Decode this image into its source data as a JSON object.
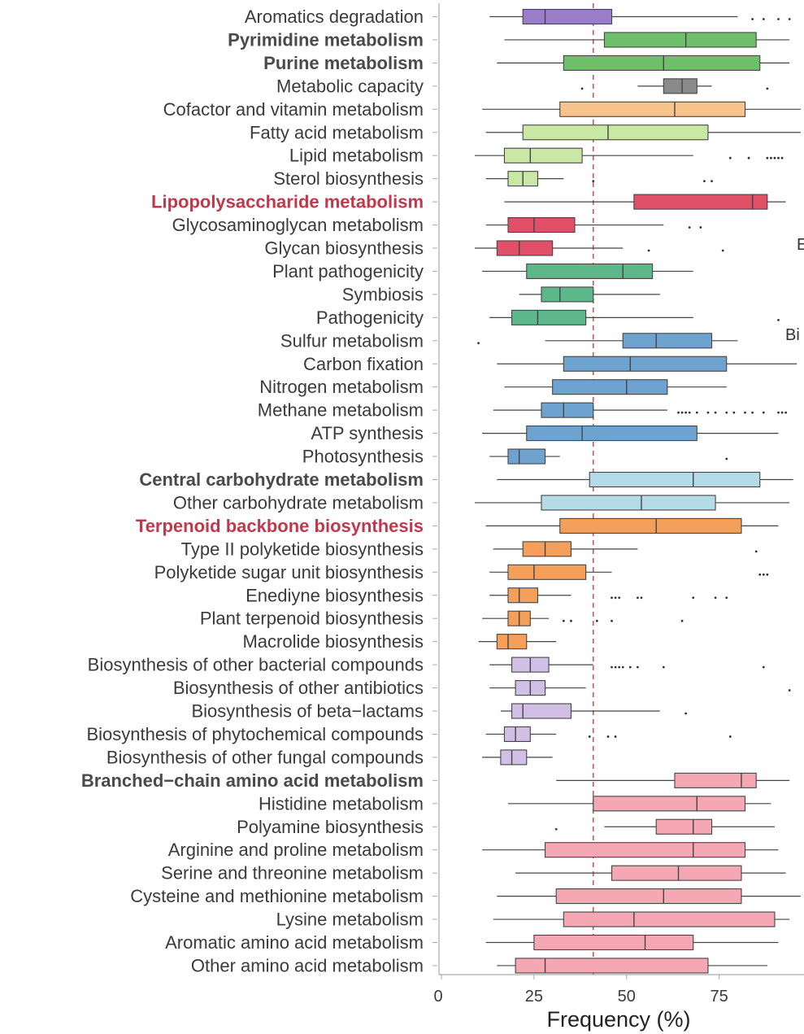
{
  "chart_data": {
    "type": "boxplot",
    "xlabel": "Frequency (%)",
    "xlim": [
      0,
      97
    ],
    "x_ticks": [
      0,
      25,
      50,
      75
    ],
    "reference_line": {
      "x": 41,
      "style": "dashed",
      "color": "#d05555"
    },
    "side_labels": [
      "E",
      "Bi"
    ],
    "categories": [
      {
        "label": "Aromatics degradation",
        "style": "normal",
        "color": "#9b7ec8",
        "whisker_low": 13,
        "q1": 22,
        "median": 28,
        "q3": 46,
        "whisker_high": 80,
        "outliers": [
          84,
          87,
          91,
          94
        ]
      },
      {
        "label": "Pyrimidine metabolism",
        "style": "bold",
        "color": "#6dbf6a",
        "whisker_low": 17,
        "q1": 44,
        "median": 66,
        "q3": 85,
        "whisker_high": 94,
        "outliers": []
      },
      {
        "label": "Purine metabolism",
        "style": "bold",
        "color": "#6dbf6a",
        "whisker_low": 15,
        "q1": 33,
        "median": 60,
        "q3": 86,
        "whisker_high": 94,
        "outliers": []
      },
      {
        "label": "Metabolic capacity",
        "style": "normal",
        "color": "#8a8a8a",
        "whisker_low": 53,
        "q1": 60,
        "median": 65,
        "q3": 69,
        "whisker_high": 73,
        "outliers": [
          38,
          88
        ]
      },
      {
        "label": "Cofactor and vitamin metabolism",
        "style": "normal",
        "color": "#f7c48d",
        "whisker_low": 11,
        "q1": 32,
        "median": 63,
        "q3": 82,
        "whisker_high": 97,
        "outliers": []
      },
      {
        "label": "Fatty acid metabolism",
        "style": "normal",
        "color": "#c9e8a6",
        "whisker_low": 12,
        "q1": 22,
        "median": 45,
        "q3": 72,
        "whisker_high": 97,
        "outliers": []
      },
      {
        "label": "Lipid metabolism",
        "style": "normal",
        "color": "#c9e8a6",
        "whisker_low": 9,
        "q1": 17,
        "median": 24,
        "q3": 38,
        "whisker_high": 68,
        "outliers": [
          78,
          83,
          88,
          89,
          90,
          91,
          92
        ]
      },
      {
        "label": "Sterol biosynthesis",
        "style": "normal",
        "color": "#c9e8a6",
        "whisker_low": 12,
        "q1": 18,
        "median": 22,
        "q3": 26,
        "whisker_high": 33,
        "outliers": [
          41,
          71,
          73
        ]
      },
      {
        "label": "Lipopolysaccharide metabolism",
        "style": "highlight",
        "color": "#e05068",
        "whisker_low": 17,
        "q1": 52,
        "median": 84,
        "q3": 88,
        "whisker_high": 93,
        "outliers": []
      },
      {
        "label": "Glycosaminoglycan metabolism",
        "style": "normal",
        "color": "#e05068",
        "whisker_low": 12,
        "q1": 18,
        "median": 25,
        "q3": 36,
        "whisker_high": 60,
        "outliers": [
          67,
          70
        ]
      },
      {
        "label": "Glycan biosynthesis",
        "style": "normal",
        "color": "#e05068",
        "whisker_low": 9,
        "q1": 15,
        "median": 21,
        "q3": 30,
        "whisker_high": 49,
        "outliers": [
          56,
          76
        ]
      },
      {
        "label": "Plant pathogenicity",
        "style": "normal",
        "color": "#5cb88a",
        "whisker_low": 11,
        "q1": 23,
        "median": 49,
        "q3": 57,
        "whisker_high": 68,
        "outliers": []
      },
      {
        "label": "Symbiosis",
        "style": "normal",
        "color": "#5cb88a",
        "whisker_low": 21,
        "q1": 27,
        "median": 32,
        "q3": 41,
        "whisker_high": 59,
        "outliers": []
      },
      {
        "label": "Pathogenicity",
        "style": "normal",
        "color": "#5cb88a",
        "whisker_low": 13,
        "q1": 19,
        "median": 26,
        "q3": 39,
        "whisker_high": 68,
        "outliers": [
          91
        ]
      },
      {
        "label": "Sulfur metabolism",
        "style": "normal",
        "color": "#6fa3cf",
        "whisker_low": 28,
        "q1": 49,
        "median": 58,
        "q3": 73,
        "whisker_high": 80,
        "outliers": [
          10
        ]
      },
      {
        "label": "Carbon fixation",
        "style": "normal",
        "color": "#6fa3cf",
        "whisker_low": 15,
        "q1": 33,
        "median": 51,
        "q3": 77,
        "whisker_high": 96,
        "outliers": []
      },
      {
        "label": "Nitrogen metabolism",
        "style": "normal",
        "color": "#6fa3cf",
        "whisker_low": 17,
        "q1": 30,
        "median": 50,
        "q3": 61,
        "whisker_high": 77,
        "outliers": []
      },
      {
        "label": "Methane metabolism",
        "style": "normal",
        "color": "#6fa3cf",
        "whisker_low": 14,
        "q1": 27,
        "median": 33,
        "q3": 41,
        "whisker_high": 61,
        "outliers": [
          64,
          65,
          66,
          67,
          69,
          72,
          74,
          77,
          79,
          82,
          84,
          87,
          91,
          92,
          93
        ]
      },
      {
        "label": "ATP synthesis",
        "style": "normal",
        "color": "#6fa3cf",
        "whisker_low": 11,
        "q1": 23,
        "median": 38,
        "q3": 69,
        "whisker_high": 91,
        "outliers": []
      },
      {
        "label": "Photosynthesis",
        "style": "normal",
        "color": "#6fa3cf",
        "whisker_low": 13,
        "q1": 18,
        "median": 21,
        "q3": 28,
        "whisker_high": 32,
        "outliers": [
          77
        ]
      },
      {
        "label": "Central carbohydrate metabolism",
        "style": "bold",
        "color": "#b6dbe8",
        "whisker_low": 15,
        "q1": 40,
        "median": 68,
        "q3": 86,
        "whisker_high": 95,
        "outliers": []
      },
      {
        "label": "Other carbohydrate metabolism",
        "style": "normal",
        "color": "#b6dbe8",
        "whisker_low": 9,
        "q1": 27,
        "median": 54,
        "q3": 74,
        "whisker_high": 94,
        "outliers": []
      },
      {
        "label": "Terpenoid backbone biosynthesis",
        "style": "highlight",
        "color": "#f4a05a",
        "whisker_low": 12,
        "q1": 32,
        "median": 58,
        "q3": 81,
        "whisker_high": 91,
        "outliers": []
      },
      {
        "label": "Type II polyketide biosynthesis",
        "style": "normal",
        "color": "#f4a05a",
        "whisker_low": 14,
        "q1": 22,
        "median": 28,
        "q3": 35,
        "whisker_high": 53,
        "outliers": [
          85
        ]
      },
      {
        "label": "Polyketide sugar unit biosynthesis",
        "style": "normal",
        "color": "#f4a05a",
        "whisker_low": 13,
        "q1": 18,
        "median": 25,
        "q3": 39,
        "whisker_high": 46,
        "outliers": [
          86,
          87,
          88
        ]
      },
      {
        "label": "Enediyne biosynthesis",
        "style": "normal",
        "color": "#f4a05a",
        "whisker_low": 13,
        "q1": 18,
        "median": 21,
        "q3": 26,
        "whisker_high": 35,
        "outliers": [
          46,
          47,
          48,
          53,
          54,
          68,
          74,
          77
        ]
      },
      {
        "label": "Plant terpenoid biosynthesis",
        "style": "normal",
        "color": "#f4a05a",
        "whisker_low": 11,
        "q1": 18,
        "median": 21,
        "q3": 24,
        "whisker_high": 29,
        "outliers": [
          33,
          35,
          42,
          46,
          65
        ]
      },
      {
        "label": "Macrolide biosynthesis",
        "style": "normal",
        "color": "#f4a05a",
        "whisker_low": 10,
        "q1": 15,
        "median": 18,
        "q3": 23,
        "whisker_high": 31,
        "outliers": []
      },
      {
        "label": "Biosynthesis of other bacterial compounds",
        "style": "normal",
        "color": "#d2bfe6",
        "whisker_low": 13,
        "q1": 19,
        "median": 24,
        "q3": 29,
        "whisker_high": 41,
        "outliers": [
          46,
          47,
          48,
          49,
          51,
          53,
          60,
          87
        ]
      },
      {
        "label": "Biosynthesis of other antibiotics",
        "style": "normal",
        "color": "#d2bfe6",
        "whisker_low": 13,
        "q1": 20,
        "median": 24,
        "q3": 28,
        "whisker_high": 39,
        "outliers": [
          94
        ]
      },
      {
        "label": "Biosynthesis of beta−lactams",
        "style": "normal",
        "color": "#d2bfe6",
        "whisker_low": 16,
        "q1": 19,
        "median": 22,
        "q3": 35,
        "whisker_high": 59,
        "outliers": [
          66
        ]
      },
      {
        "label": "Biosynthesis of phytochemical compounds",
        "style": "normal",
        "color": "#d2bfe6",
        "whisker_low": 12,
        "q1": 17,
        "median": 20,
        "q3": 24,
        "whisker_high": 31,
        "outliers": [
          40,
          45,
          47,
          78
        ]
      },
      {
        "label": "Biosynthesis of other fungal compounds",
        "style": "normal",
        "color": "#d2bfe6",
        "whisker_low": 11,
        "q1": 16,
        "median": 19,
        "q3": 23,
        "whisker_high": 30,
        "outliers": []
      },
      {
        "label": "Branched−chain amino acid metabolism",
        "style": "bold",
        "color": "#f5a7b4",
        "whisker_low": 31,
        "q1": 63,
        "median": 81,
        "q3": 85,
        "whisker_high": 94,
        "outliers": []
      },
      {
        "label": "Histidine metabolism",
        "style": "normal",
        "color": "#f5a7b4",
        "whisker_low": 18,
        "q1": 41,
        "median": 69,
        "q3": 82,
        "whisker_high": 89,
        "outliers": []
      },
      {
        "label": "Polyamine biosynthesis",
        "style": "normal",
        "color": "#f5a7b4",
        "whisker_low": 44,
        "q1": 58,
        "median": 68,
        "q3": 73,
        "whisker_high": 90,
        "outliers": [
          31
        ]
      },
      {
        "label": "Arginine and proline metabolism",
        "style": "normal",
        "color": "#f5a7b4",
        "whisker_low": 11,
        "q1": 28,
        "median": 68,
        "q3": 82,
        "whisker_high": 91,
        "outliers": []
      },
      {
        "label": "Serine and threonine metabolism",
        "style": "normal",
        "color": "#f5a7b4",
        "whisker_low": 20,
        "q1": 46,
        "median": 64,
        "q3": 81,
        "whisker_high": 93,
        "outliers": []
      },
      {
        "label": "Cysteine and methionine metabolism",
        "style": "normal",
        "color": "#f5a7b4",
        "whisker_low": 15,
        "q1": 31,
        "median": 60,
        "q3": 81,
        "whisker_high": 97,
        "outliers": []
      },
      {
        "label": "Lysine metabolism",
        "style": "normal",
        "color": "#f5a7b4",
        "whisker_low": 14,
        "q1": 33,
        "median": 52,
        "q3": 90,
        "whisker_high": 94,
        "outliers": []
      },
      {
        "label": "Aromatic amino acid metabolism",
        "style": "normal",
        "color": "#f5a7b4",
        "whisker_low": 12,
        "q1": 25,
        "median": 55,
        "q3": 68,
        "whisker_high": 91,
        "outliers": []
      },
      {
        "label": "Other amino acid metabolism",
        "style": "normal",
        "color": "#f5a7b4",
        "whisker_low": 15,
        "q1": 20,
        "median": 28,
        "q3": 72,
        "whisker_high": 88,
        "outliers": []
      }
    ]
  }
}
